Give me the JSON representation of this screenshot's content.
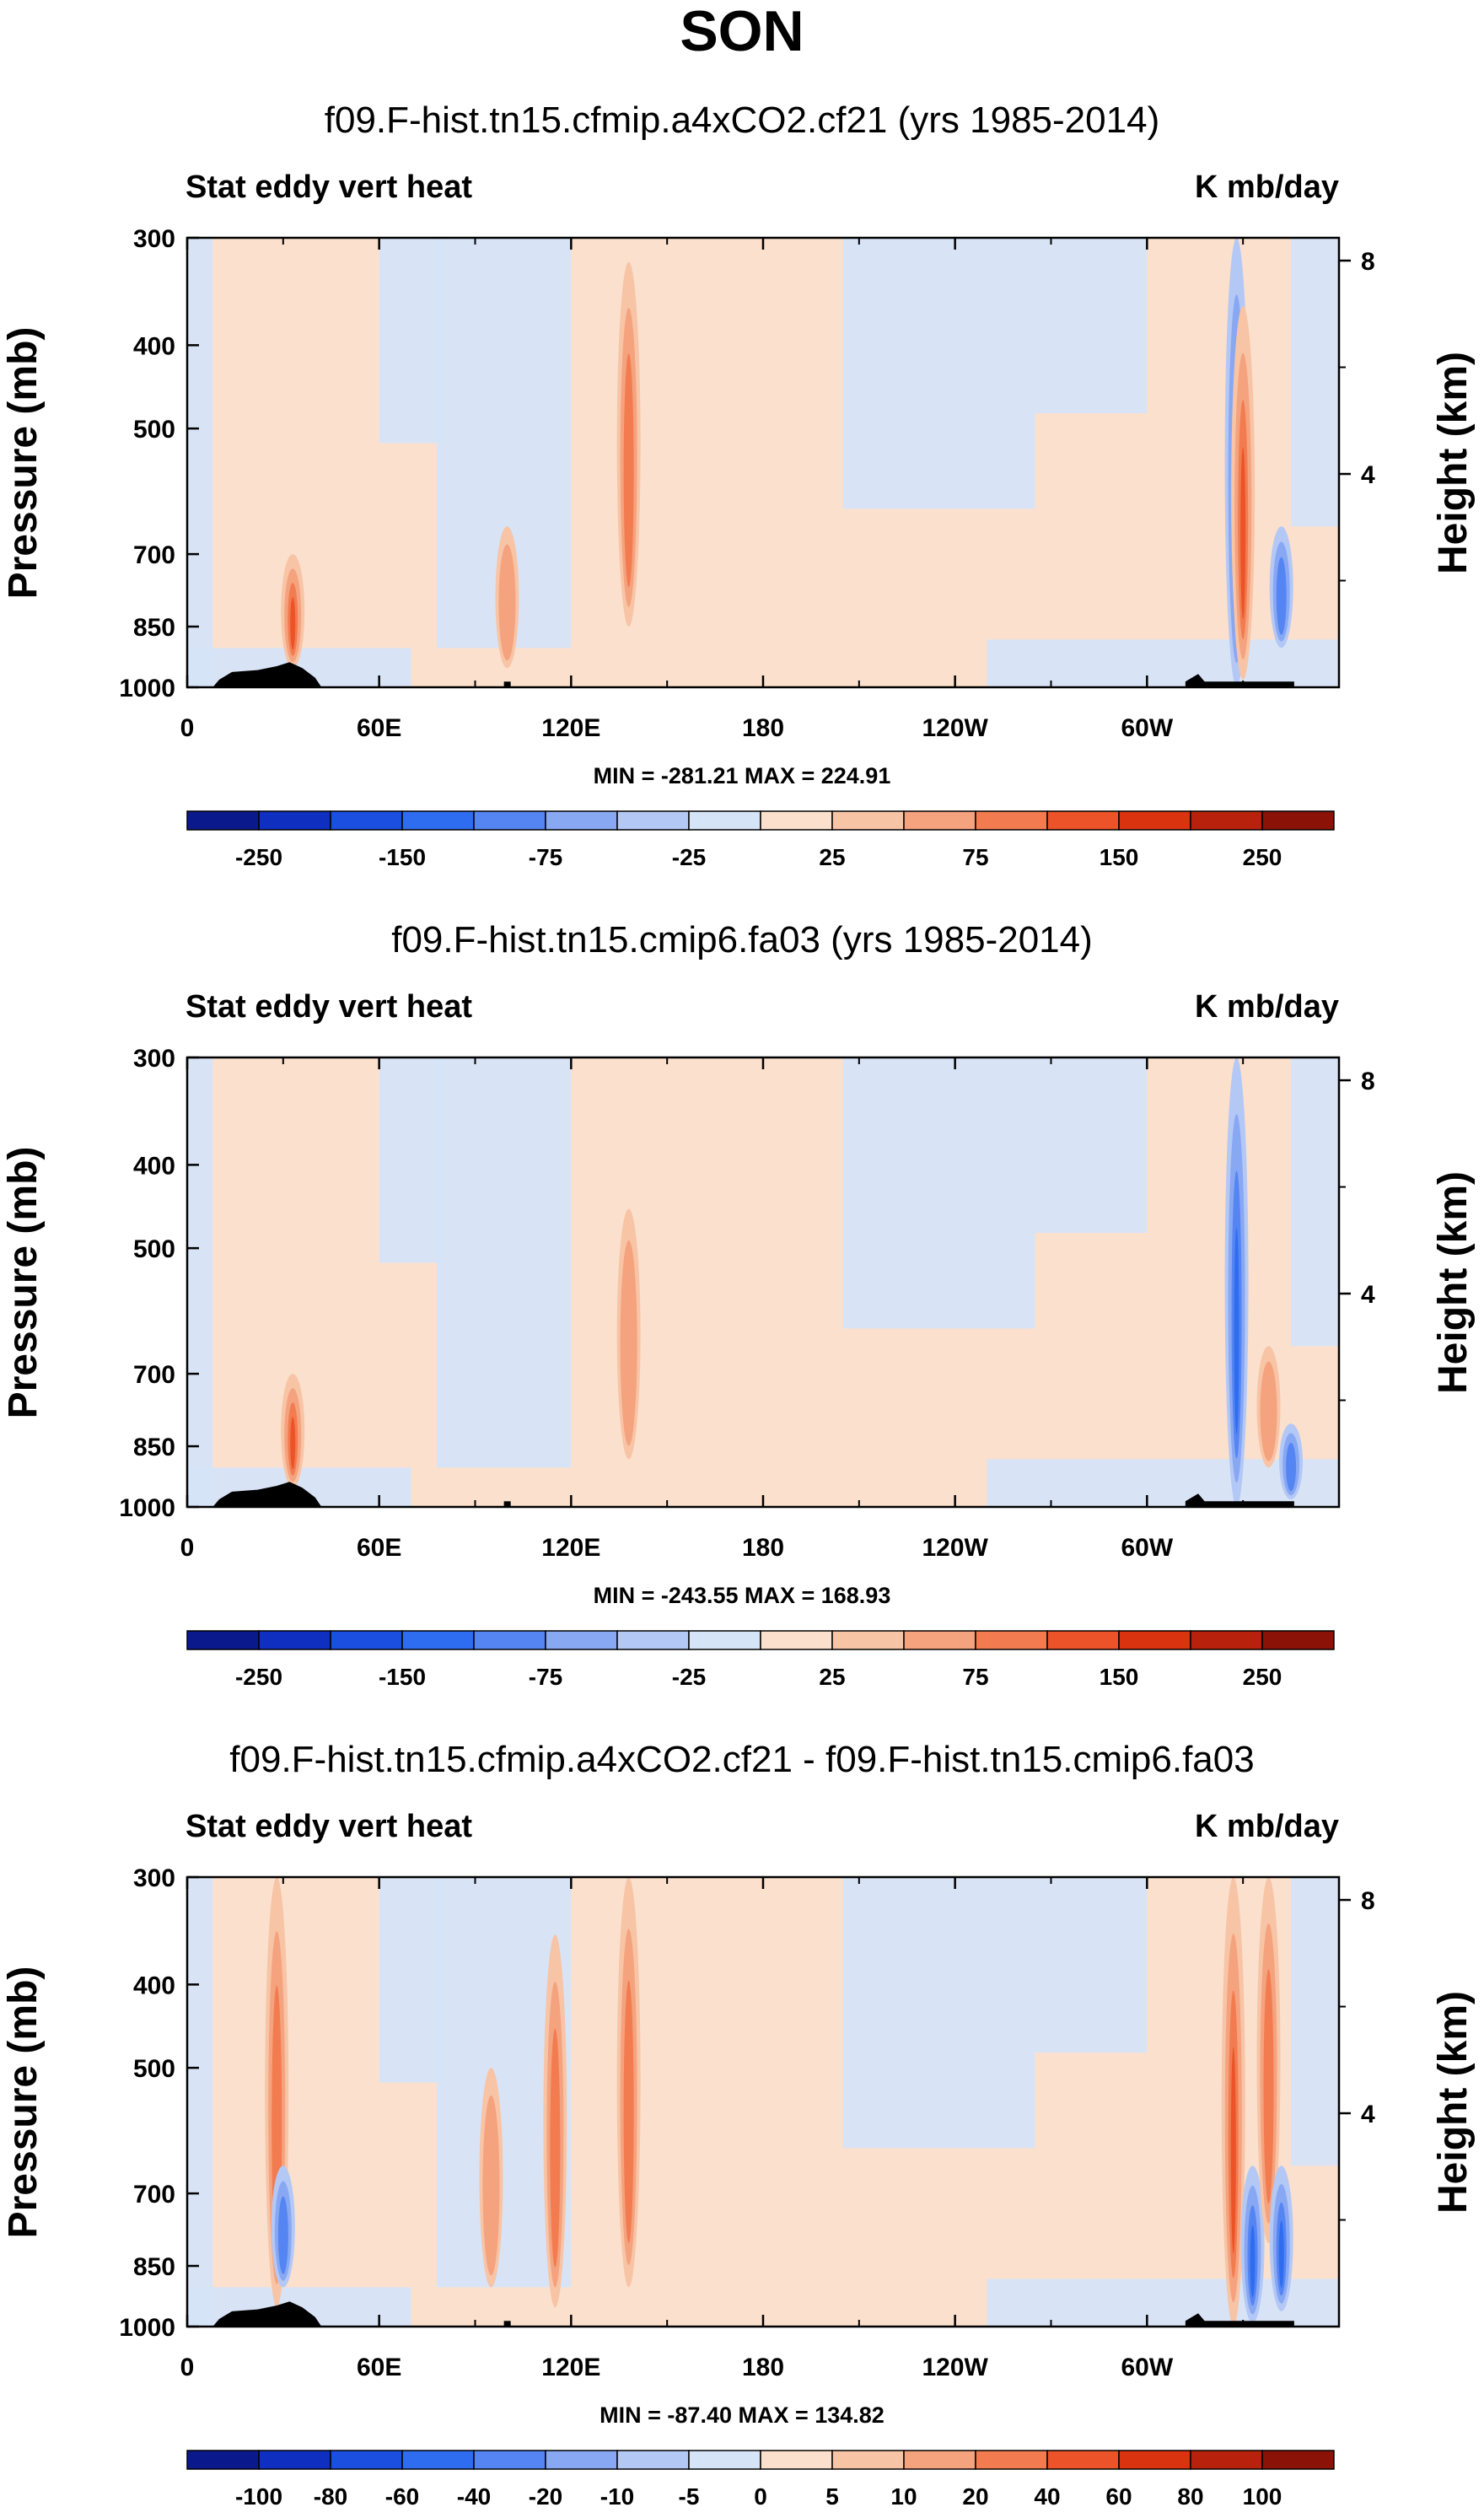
{
  "title": "SON",
  "y_axis_left_label": "Pressure (mb)",
  "y_axis_right_label": "Height (km)",
  "chart_data": [
    {
      "type": "heatmap",
      "title": "f09.F-hist.tn15.cfmip.a4xCO2.cf21 (yrs 1985-2014)",
      "variable": "Stat eddy vert heat",
      "units": "K mb/day",
      "xlabel": "",
      "ylabel": "Pressure (mb)",
      "ylabel_right": "Height (km)",
      "x_ticks": [
        "0",
        "60E",
        "120E",
        "180",
        "120W",
        "60W"
      ],
      "y_ticks": [
        "300",
        "400",
        "500",
        "700",
        "850",
        "1000"
      ],
      "y_ticks_right": [
        "8",
        "4"
      ],
      "min_label": "MIN = -281.21",
      "max_label": "MAX = 224.91",
      "min": -281.21,
      "max": 224.91,
      "colorbar_labels": [
        "-250",
        "-150",
        "-75",
        "-25",
        "25",
        "75",
        "150",
        "250"
      ],
      "colors": [
        "#0a1a8c",
        "#0e2fbf",
        "#1a4fe0",
        "#2f6df0",
        "#5585f2",
        "#88a8f3",
        "#b4c8f6",
        "#d6e4f8",
        "#fbe0cd",
        "#f8c4a6",
        "#f5a27e",
        "#f27c50",
        "#ec5328",
        "#da3310",
        "#b8220c",
        "#8a1207"
      ],
      "features": [
        {
          "lon": 138,
          "p_top": 320,
          "p_bot": 850,
          "sign": 1,
          "strength": 2
        },
        {
          "lon": 328,
          "p_top": 300,
          "p_bot": 1000,
          "sign": -1,
          "strength": 2
        },
        {
          "lon": 330,
          "p_top": 360,
          "p_bot": 980,
          "sign": 1,
          "strength": 3
        },
        {
          "lon": 33,
          "p_top": 700,
          "p_bot": 950,
          "sign": 1,
          "strength": 3
        },
        {
          "lon": 100,
          "p_top": 650,
          "p_bot": 950,
          "sign": 1,
          "strength": 1
        },
        {
          "lon": 342,
          "p_top": 650,
          "p_bot": 900,
          "sign": -1,
          "strength": 2
        }
      ]
    },
    {
      "type": "heatmap",
      "title": "f09.F-hist.tn15.cmip6.fa03 (yrs 1985-2014)",
      "variable": "Stat eddy vert heat",
      "units": "K mb/day",
      "xlabel": "",
      "ylabel": "Pressure (mb)",
      "ylabel_right": "Height (km)",
      "x_ticks": [
        "0",
        "60E",
        "120E",
        "180",
        "120W",
        "60W"
      ],
      "y_ticks": [
        "300",
        "400",
        "500",
        "700",
        "850",
        "1000"
      ],
      "y_ticks_right": [
        "8",
        "4"
      ],
      "min_label": "MIN = -243.55",
      "max_label": "MAX = 168.93",
      "min": -243.55,
      "max": 168.93,
      "colorbar_labels": [
        "-250",
        "-150",
        "-75",
        "-25",
        "25",
        "75",
        "150",
        "250"
      ],
      "colors": [
        "#0a1a8c",
        "#0e2fbf",
        "#1a4fe0",
        "#2f6df0",
        "#5585f2",
        "#88a8f3",
        "#b4c8f6",
        "#d6e4f8",
        "#fbe0cd",
        "#f8c4a6",
        "#f5a27e",
        "#f27c50",
        "#ec5328",
        "#da3310",
        "#b8220c",
        "#8a1207"
      ],
      "features": [
        {
          "lon": 138,
          "p_top": 450,
          "p_bot": 880,
          "sign": 1,
          "strength": 1
        },
        {
          "lon": 328,
          "p_top": 300,
          "p_bot": 1000,
          "sign": -1,
          "strength": 3
        },
        {
          "lon": 33,
          "p_top": 700,
          "p_bot": 950,
          "sign": 1,
          "strength": 3
        },
        {
          "lon": 338,
          "p_top": 650,
          "p_bot": 900,
          "sign": 1,
          "strength": 1
        },
        {
          "lon": 345,
          "p_top": 800,
          "p_bot": 980,
          "sign": -1,
          "strength": 2
        }
      ]
    },
    {
      "type": "heatmap",
      "title": "f09.F-hist.tn15.cfmip.a4xCO2.cf21 - f09.F-hist.tn15.cmip6.fa03",
      "variable": "Stat eddy vert heat",
      "units": "K mb/day",
      "xlabel": "",
      "ylabel": "Pressure (mb)",
      "ylabel_right": "Height (km)",
      "x_ticks": [
        "0",
        "60E",
        "120E",
        "180",
        "120W",
        "60W"
      ],
      "y_ticks": [
        "300",
        "400",
        "500",
        "700",
        "850",
        "1000"
      ],
      "y_ticks_right": [
        "8",
        "4"
      ],
      "min_label": "MIN = -87.40",
      "max_label": "MAX = 134.82",
      "min": -87.4,
      "max": 134.82,
      "colorbar_labels": [
        "-100",
        "-80",
        "-60",
        "-40",
        "-20",
        "-10",
        "-5",
        "0",
        "5",
        "10",
        "20",
        "40",
        "60",
        "80",
        "100"
      ],
      "colors": [
        "#0a1a8c",
        "#0e2fbf",
        "#1a4fe0",
        "#2f6df0",
        "#5585f2",
        "#88a8f3",
        "#b4c8f6",
        "#d6e4f8",
        "#fbe0cd",
        "#f8c4a6",
        "#f5a27e",
        "#f27c50",
        "#ec5328",
        "#da3310",
        "#b8220c",
        "#8a1207"
      ],
      "features": [
        {
          "lon": 28,
          "p_top": 300,
          "p_bot": 950,
          "sign": 1,
          "strength": 2
        },
        {
          "lon": 30,
          "p_top": 650,
          "p_bot": 900,
          "sign": -1,
          "strength": 2
        },
        {
          "lon": 115,
          "p_top": 350,
          "p_bot": 950,
          "sign": 1,
          "strength": 2
        },
        {
          "lon": 138,
          "p_top": 300,
          "p_bot": 900,
          "sign": 1,
          "strength": 2
        },
        {
          "lon": 95,
          "p_top": 500,
          "p_bot": 900,
          "sign": 1,
          "strength": 1
        },
        {
          "lon": 327,
          "p_top": 300,
          "p_bot": 1000,
          "sign": 1,
          "strength": 3
        },
        {
          "lon": 333,
          "p_top": 650,
          "p_bot": 990,
          "sign": -1,
          "strength": 3
        },
        {
          "lon": 338,
          "p_top": 300,
          "p_bot": 800,
          "sign": 1,
          "strength": 2
        },
        {
          "lon": 342,
          "p_top": 650,
          "p_bot": 960,
          "sign": -1,
          "strength": 3
        }
      ]
    }
  ]
}
